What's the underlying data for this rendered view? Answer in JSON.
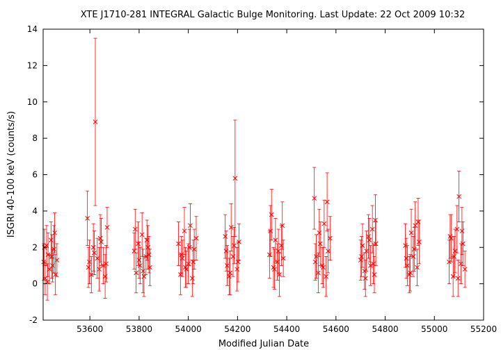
{
  "chart_data": {
    "type": "scatter",
    "title": "XTE J1710-281   INTEGRAL Galactic Bulge Monitoring.  Last Update: 22 Oct 2009 10:32",
    "xlabel": "Modified Julian Date",
    "ylabel": "ISGRI 40-100 keV (counts/s)",
    "xlim": [
      53410,
      55200
    ],
    "ylim": [
      -2,
      14
    ],
    "xticks": [
      53600,
      53800,
      54000,
      54200,
      54400,
      54600,
      54800,
      55000,
      55200
    ],
    "yticks": [
      -2,
      0,
      2,
      4,
      6,
      8,
      10,
      12,
      14
    ],
    "grid": false,
    "marker": "x",
    "color": "#ff0000",
    "series": [
      {
        "x": [
          53412,
          53418,
          53424,
          53430,
          53436,
          53442,
          53448,
          53454,
          53460,
          53466,
          53415,
          53427,
          53445,
          53457,
          53590,
          53598,
          53606,
          53614,
          53622,
          53630,
          53638,
          53646,
          53654,
          53662,
          53670,
          53594,
          53618,
          53642,
          53666,
          53780,
          53788,
          53796,
          53804,
          53812,
          53820,
          53828,
          53836,
          53844,
          53784,
          53800,
          53816,
          53832,
          53840,
          53960,
          53968,
          53976,
          53984,
          53992,
          54000,
          54008,
          54016,
          54024,
          54032,
          53972,
          53988,
          54004,
          54020,
          54150,
          54158,
          54166,
          54174,
          54182,
          54190,
          54198,
          54206,
          54154,
          54170,
          54186,
          54202,
          54330,
          54338,
          54346,
          54354,
          54362,
          54370,
          54378,
          54386,
          54334,
          54350,
          54366,
          54382,
          54512,
          54520,
          54528,
          54536,
          54544,
          54552,
          54560,
          54568,
          54576,
          54516,
          54532,
          54548,
          54564,
          54700,
          54708,
          54716,
          54724,
          54732,
          54740,
          54748,
          54756,
          54762,
          54704,
          54720,
          54736,
          54752,
          54760,
          54882,
          54890,
          54898,
          54906,
          54914,
          54922,
          54930,
          54938,
          54886,
          54902,
          54918,
          54934,
          55060,
          55068,
          55076,
          55084,
          55092,
          55100,
          55108,
          55116,
          55124,
          55064,
          55080,
          55096,
          55112
        ],
        "y": [
          1.2,
          0.3,
          2.1,
          1.6,
          0.8,
          2.4,
          1.0,
          1.9,
          0.5,
          1.3,
          2.0,
          0.1,
          1.5,
          2.8,
          3.6,
          1.2,
          0.5,
          2.0,
          8.9,
          1.4,
          0.8,
          2.3,
          1.0,
          0.4,
          3.1,
          0.9,
          1.7,
          2.5,
          1.1,
          1.8,
          0.6,
          2.2,
          1.0,
          2.7,
          0.4,
          1.5,
          2.0,
          0.9,
          3.0,
          1.3,
          0.7,
          2.4,
          1.6,
          2.2,
          0.5,
          1.4,
          2.9,
          0.8,
          1.1,
          3.2,
          0.3,
          1.9,
          2.5,
          1.6,
          0.9,
          2.0,
          1.2,
          2.6,
          1.0,
          0.4,
          3.1,
          1.5,
          5.8,
          0.8,
          2.3,
          1.8,
          0.6,
          2.1,
          1.2,
          1.6,
          3.8,
          0.9,
          2.4,
          1.2,
          0.5,
          2.1,
          1.4,
          2.9,
          0.8,
          1.8,
          3.2,
          4.7,
          1.5,
          0.6,
          2.2,
          1.0,
          3.3,
          0.4,
          1.8,
          2.5,
          1.2,
          2.8,
          0.9,
          4.5,
          1.3,
          2.1,
          0.7,
          1.8,
          2.6,
          1.0,
          3.0,
          0.5,
          2.2,
          1.5,
          0.3,
          2.4,
          1.1,
          3.5,
          2.1,
          1.0,
          0.5,
          2.8,
          1.5,
          3.2,
          0.9,
          2.3,
          1.4,
          0.6,
          1.9,
          3.4,
          1.2,
          2.5,
          0.4,
          1.8,
          3.0,
          4.8,
          1.1,
          2.2,
          0.8,
          2.6,
          1.5,
          0.3,
          2.9
        ],
        "err": [
          1.0,
          0.9,
          1.1,
          1.2,
          0.8,
          1.0,
          0.9,
          1.3,
          1.1,
          0.9,
          1.0,
          1.0,
          1.2,
          1.1,
          1.5,
          1.2,
          1.0,
          1.3,
          4.6,
          1.1,
          1.2,
          1.3,
          1.0,
          1.2,
          1.1,
          1.1,
          1.2,
          1.3,
          1.0,
          1.0,
          1.1,
          1.2,
          1.0,
          1.2,
          1.1,
          1.0,
          1.2,
          1.0,
          1.1,
          1.0,
          1.2,
          1.1,
          1.0,
          1.2,
          1.1,
          1.0,
          1.3,
          1.0,
          1.1,
          1.2,
          1.0,
          1.1,
          1.2,
          1.0,
          1.1,
          1.0,
          1.2,
          1.2,
          1.1,
          1.0,
          1.3,
          1.1,
          3.2,
          1.2,
          1.0,
          1.1,
          1.2,
          1.0,
          1.1,
          1.3,
          1.4,
          1.1,
          1.2,
          1.0,
          1.2,
          1.1,
          1.0,
          1.4,
          1.1,
          1.2,
          1.3,
          1.7,
          1.2,
          1.1,
          1.2,
          1.0,
          1.3,
          1.1,
          1.2,
          1.2,
          1.0,
          1.3,
          1.1,
          1.6,
          1.1,
          1.2,
          1.0,
          1.1,
          1.2,
          1.1,
          1.3,
          1.0,
          1.2,
          1.1,
          1.0,
          1.2,
          1.1,
          1.4,
          1.2,
          1.1,
          1.0,
          1.3,
          1.1,
          1.3,
          1.0,
          1.2,
          1.1,
          1.0,
          1.2,
          1.3,
          1.2,
          1.3,
          1.1,
          1.2,
          1.3,
          1.4,
          1.1,
          1.2,
          1.0,
          1.2,
          1.1,
          1.0,
          1.3
        ]
      }
    ]
  }
}
